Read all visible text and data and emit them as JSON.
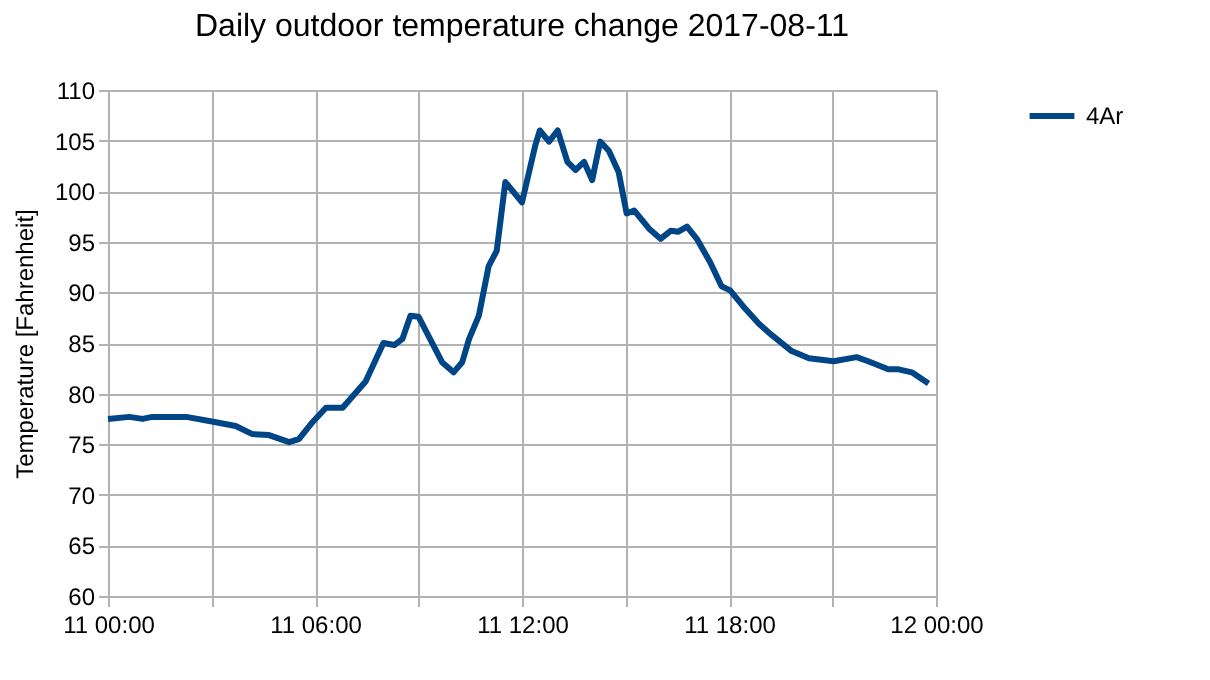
{
  "chart_data": {
    "type": "line",
    "title": "Daily outdoor temperature change 2017-08-11",
    "ylabel": "Temperature [Fahrenheit]",
    "x": [
      "2017-08-11T00:00",
      "2017-08-11T00:37",
      "2017-08-11T01:00",
      "2017-08-11T01:17",
      "2017-08-11T02:16",
      "2017-08-11T02:56",
      "2017-08-11T03:42",
      "2017-08-11T04:11",
      "2017-08-11T04:40",
      "2017-08-11T05:15",
      "2017-08-11T05:32",
      "2017-08-11T05:56",
      "2017-08-11T06:19",
      "2017-08-11T06:48",
      "2017-08-11T07:28",
      "2017-08-11T07:59",
      "2017-08-11T08:18",
      "2017-08-11T08:32",
      "2017-08-11T08:46",
      "2017-08-11T09:00",
      "2017-08-11T09:41",
      "2017-08-11T10:01",
      "2017-08-11T10:16",
      "2017-08-11T10:28",
      "2017-08-11T10:45",
      "2017-08-11T11:02",
      "2017-08-11T11:16",
      "2017-08-11T11:31",
      "2017-08-11T12:00",
      "2017-08-11T12:23",
      "2017-08-11T12:31",
      "2017-08-11T12:47",
      "2017-08-11T13:02",
      "2017-08-11T13:19",
      "2017-08-11T13:33",
      "2017-08-11T13:48",
      "2017-08-11T14:02",
      "2017-08-11T14:16",
      "2017-08-11T14:31",
      "2017-08-11T14:48",
      "2017-08-11T15:02",
      "2017-08-11T15:15",
      "2017-08-11T15:41",
      "2017-08-11T16:01",
      "2017-08-11T16:19",
      "2017-08-11T16:32",
      "2017-08-11T16:47",
      "2017-08-11T17:04",
      "2017-08-11T17:27",
      "2017-08-11T17:47",
      "2017-08-11T18:02",
      "2017-08-11T18:28",
      "2017-08-11T18:52",
      "2017-08-11T19:14",
      "2017-08-11T19:49",
      "2017-08-11T20:19",
      "2017-08-11T21:02",
      "2017-08-11T21:42",
      "2017-08-11T22:02",
      "2017-08-11T22:37",
      "2017-08-11T22:55",
      "2017-08-11T23:18",
      "2017-08-11T23:47"
    ],
    "series": [
      {
        "name": "4Ar",
        "color": "#004586",
        "values": [
          77.5,
          77.7,
          77.5,
          77.7,
          77.7,
          77.3,
          76.8,
          76.0,
          75.9,
          75.2,
          75.5,
          77.2,
          78.6,
          78.6,
          81.2,
          85.0,
          84.8,
          85.4,
          87.7,
          87.6,
          83.1,
          82.1,
          83.1,
          85.4,
          87.7,
          92.6,
          94.1,
          100.9,
          98.9,
          104.5,
          106.0,
          104.9,
          106.0,
          102.9,
          102.1,
          102.9,
          101.1,
          104.9,
          104.0,
          101.9,
          97.8,
          98.1,
          96.3,
          95.3,
          96.1,
          96.0,
          96.5,
          95.3,
          93.0,
          90.6,
          90.2,
          88.4,
          86.9,
          85.8,
          84.2,
          83.5,
          83.2,
          83.6,
          83.2,
          82.4,
          82.4,
          82.1,
          81.0
        ]
      }
    ],
    "xlim": [
      "2017-08-11T00:00",
      "2017-08-12T00:00"
    ],
    "xticks": [
      {
        "value": "2017-08-11T00:00",
        "label": "11 00:00"
      },
      {
        "value": "2017-08-11T03:00",
        "label": null
      },
      {
        "value": "2017-08-11T06:00",
        "label": "11 06:00"
      },
      {
        "value": "2017-08-11T09:00",
        "label": null
      },
      {
        "value": "2017-08-11T12:00",
        "label": "11 12:00"
      },
      {
        "value": "2017-08-11T15:00",
        "label": null
      },
      {
        "value": "2017-08-11T18:00",
        "label": "11 18:00"
      },
      {
        "value": "2017-08-11T21:00",
        "label": null
      },
      {
        "value": "2017-08-12T00:00",
        "label": "12 00:00"
      }
    ],
    "ylim": [
      60,
      110
    ],
    "yticks": [
      60,
      65,
      70,
      75,
      80,
      85,
      90,
      95,
      100,
      105,
      110
    ],
    "grid": true,
    "legend": "right",
    "marker": "none",
    "line_style": "solid"
  }
}
